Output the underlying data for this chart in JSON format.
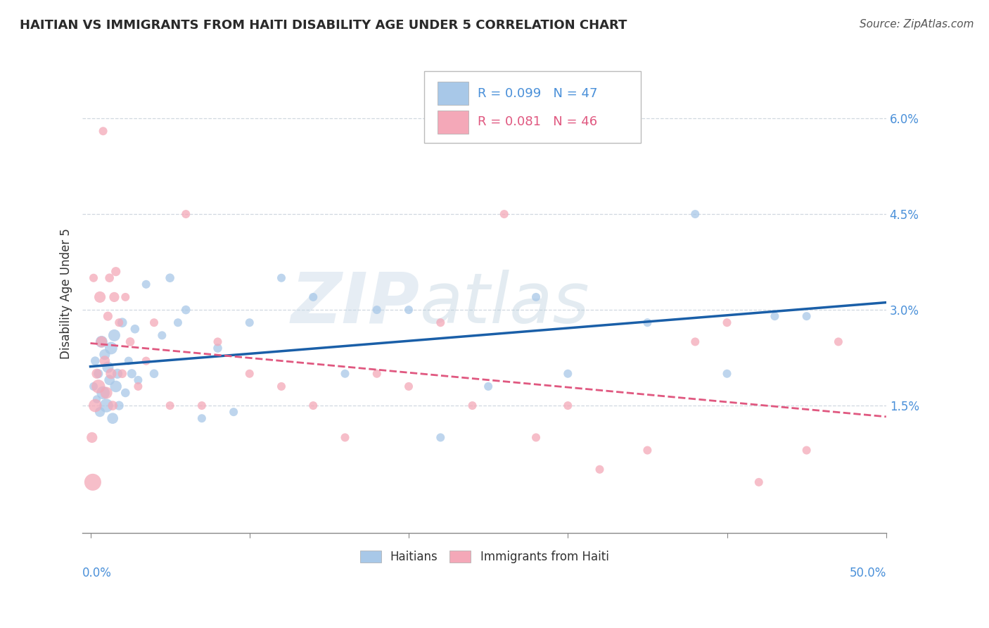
{
  "title": "HAITIAN VS IMMIGRANTS FROM HAITI DISABILITY AGE UNDER 5 CORRELATION CHART",
  "source": "Source: ZipAtlas.com",
  "ylabel": "Disability Age Under 5",
  "xlim": [
    -0.5,
    50.0
  ],
  "ylim": [
    -0.5,
    7.0
  ],
  "yticks": [
    1.5,
    3.0,
    4.5,
    6.0
  ],
  "ytick_labels": [
    "1.5%",
    "3.0%",
    "4.5%",
    "6.0%"
  ],
  "xtick_labels_ends": [
    "0.0%",
    "50.0%"
  ],
  "blue_color": "#a8c8e8",
  "pink_color": "#f4a8b8",
  "trend_blue": "#1a5fa8",
  "trend_pink": "#e05880",
  "legend_R_blue": "R = 0.099",
  "legend_N_blue": "N = 47",
  "legend_R_pink": "R = 0.081",
  "legend_N_pink": "N = 46",
  "legend_label_blue": "Haitians",
  "legend_label_pink": "Immigrants from Haiti",
  "watermark_zip": "ZIP",
  "watermark_atlas": "atlas",
  "blue_color_text": "#4a90d9",
  "pink_color_text": "#e05880",
  "blue_x": [
    0.2,
    0.3,
    0.4,
    0.5,
    0.6,
    0.7,
    0.8,
    0.9,
    1.0,
    1.1,
    1.2,
    1.3,
    1.4,
    1.5,
    1.6,
    1.7,
    1.8,
    2.0,
    2.2,
    2.4,
    2.6,
    2.8,
    3.0,
    3.5,
    4.0,
    4.5,
    5.0,
    5.5,
    6.0,
    7.0,
    8.0,
    9.0,
    10.0,
    12.0,
    14.0,
    16.0,
    18.0,
    20.0,
    22.0,
    25.0,
    28.0,
    30.0,
    35.0,
    38.0,
    40.0,
    43.0,
    45.0
  ],
  "blue_y": [
    1.8,
    2.2,
    1.6,
    2.0,
    1.4,
    2.5,
    1.7,
    2.3,
    1.5,
    2.1,
    1.9,
    2.4,
    1.3,
    2.6,
    1.8,
    2.0,
    1.5,
    2.8,
    1.7,
    2.2,
    2.0,
    2.7,
    1.9,
    3.4,
    2.0,
    2.6,
    3.5,
    2.8,
    3.0,
    1.3,
    2.4,
    1.4,
    2.8,
    3.5,
    3.2,
    2.0,
    3.0,
    3.0,
    1.0,
    1.8,
    3.2,
    2.0,
    2.8,
    4.5,
    2.0,
    2.9,
    2.9
  ],
  "blue_sizes": [
    50,
    55,
    45,
    60,
    70,
    100,
    120,
    80,
    130,
    90,
    75,
    110,
    85,
    100,
    95,
    70,
    60,
    65,
    55,
    50,
    60,
    55,
    50,
    50,
    55,
    50,
    55,
    50,
    55,
    50,
    55,
    50,
    50,
    50,
    50,
    50,
    50,
    50,
    50,
    50,
    50,
    50,
    50,
    50,
    50,
    50,
    50
  ],
  "pink_x": [
    0.1,
    0.2,
    0.3,
    0.4,
    0.5,
    0.6,
    0.7,
    0.8,
    0.9,
    1.0,
    1.1,
    1.2,
    1.3,
    1.4,
    1.5,
    1.6,
    1.8,
    2.0,
    2.2,
    2.5,
    3.0,
    3.5,
    4.0,
    5.0,
    6.0,
    7.0,
    8.0,
    10.0,
    12.0,
    14.0,
    16.0,
    18.0,
    20.0,
    22.0,
    24.0,
    26.0,
    28.0,
    30.0,
    32.0,
    35.0,
    38.0,
    40.0,
    42.0,
    45.0,
    47.0,
    0.15
  ],
  "pink_y": [
    1.0,
    3.5,
    1.5,
    2.0,
    1.8,
    3.2,
    2.5,
    5.8,
    2.2,
    1.7,
    2.9,
    3.5,
    2.0,
    1.5,
    3.2,
    3.6,
    2.8,
    2.0,
    3.2,
    2.5,
    1.8,
    2.2,
    2.8,
    1.5,
    4.5,
    1.5,
    2.5,
    2.0,
    1.8,
    1.5,
    1.0,
    2.0,
    1.8,
    2.8,
    1.5,
    4.5,
    1.0,
    1.5,
    0.5,
    0.8,
    2.5,
    2.8,
    0.3,
    0.8,
    2.5,
    0.3
  ],
  "pink_sizes": [
    80,
    50,
    120,
    70,
    130,
    90,
    85,
    50,
    75,
    100,
    60,
    55,
    80,
    65,
    70,
    60,
    50,
    55,
    50,
    55,
    50,
    50,
    50,
    50,
    50,
    50,
    50,
    50,
    50,
    50,
    50,
    50,
    50,
    50,
    50,
    50,
    50,
    50,
    50,
    50,
    50,
    50,
    50,
    50,
    50,
    200
  ],
  "background_color": "#ffffff",
  "grid_color": "#d0d8e0",
  "title_color": "#2a2a2a",
  "text_color_blue": "#4a90d9"
}
